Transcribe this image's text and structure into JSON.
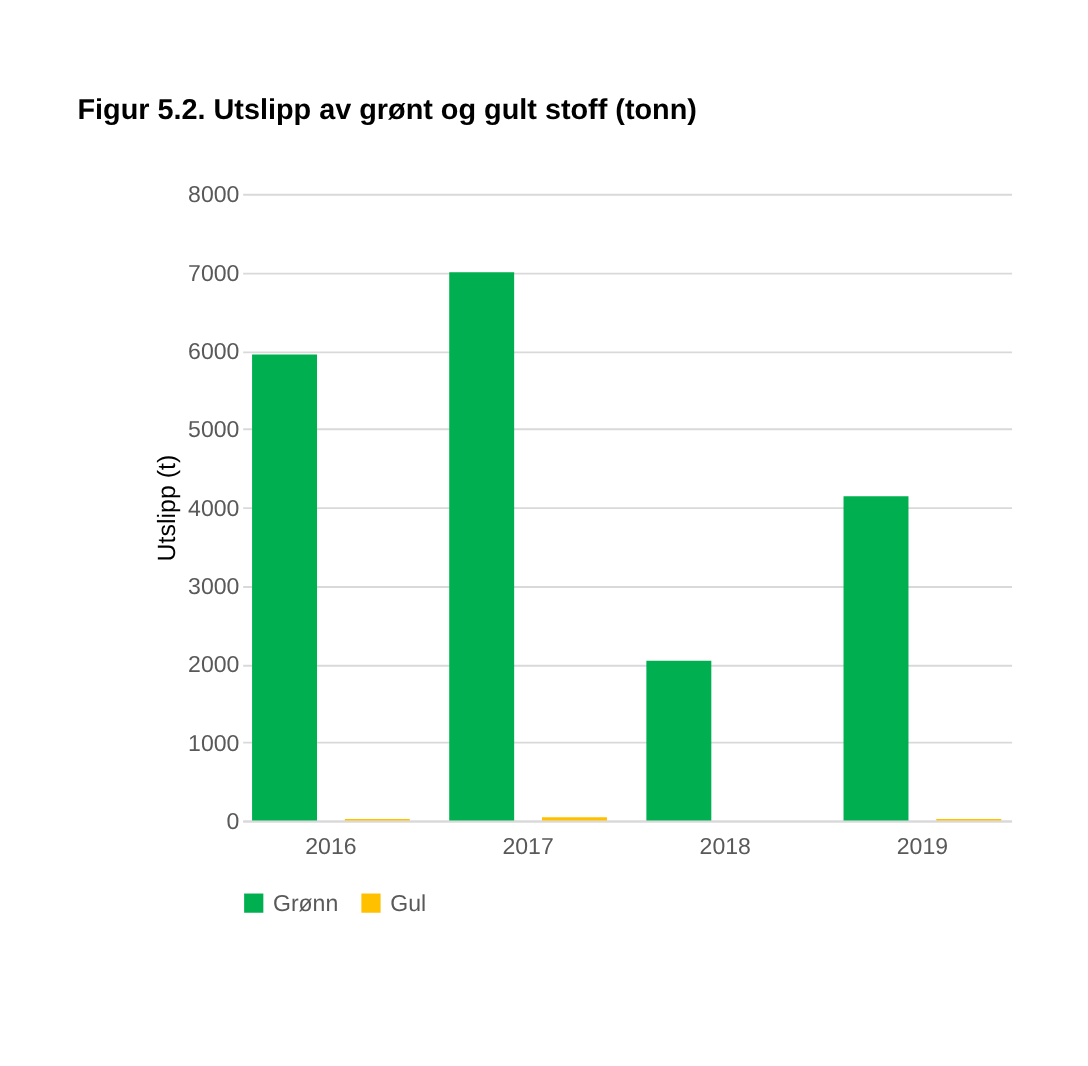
{
  "chart_data": {
    "type": "bar",
    "title": "Figur 5.2. Utslipp av grønt og gult stoff (tonn)",
    "ylabel": "Utslipp (t)",
    "categories": [
      "2016",
      "2017",
      "2018",
      "2019"
    ],
    "series": [
      {
        "name": "Grønn",
        "color": "#00b050",
        "values": [
          5950,
          7000,
          2040,
          4140
        ]
      },
      {
        "name": "Gul",
        "color": "#ffc000",
        "values": [
          20,
          40,
          0,
          20
        ]
      }
    ],
    "ylim": [
      0,
      8000
    ],
    "yticks": [
      0,
      1000,
      2000,
      3000,
      4000,
      5000,
      6000,
      7000,
      8000
    ],
    "grid": "y",
    "legend": "bottom"
  }
}
